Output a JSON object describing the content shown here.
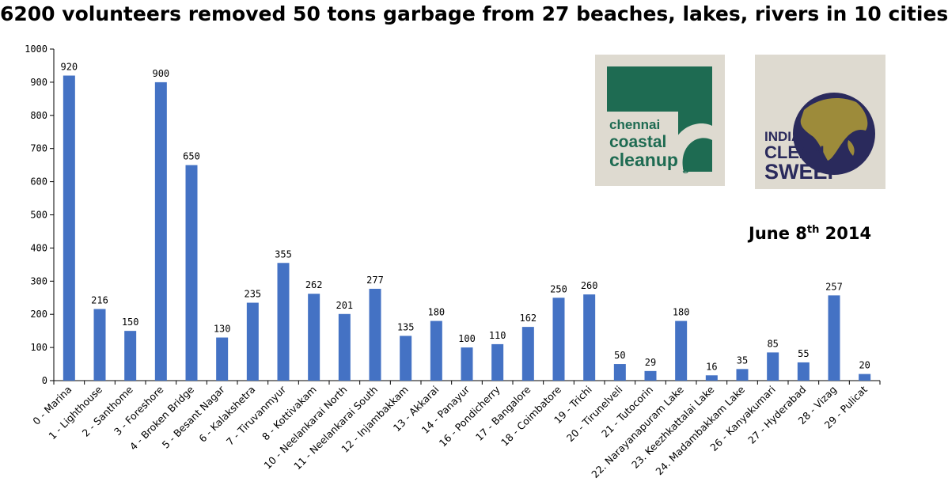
{
  "chart_data": {
    "type": "bar",
    "title": "6200 volunteers removed 50 tons garbage from 27 beaches, lakes, rivers in 10 cities",
    "xlabel": "",
    "ylabel": "",
    "ylim": [
      0,
      1000
    ],
    "yticks": [
      0,
      100,
      200,
      300,
      400,
      500,
      600,
      700,
      800,
      900,
      1000
    ],
    "grid": false,
    "legend": "none",
    "bar_color": "#4472c4",
    "categories": [
      "0 - Marina",
      "1 - Lighthouse",
      "2 - Santhome",
      "3 - Foreshore",
      "4 - Broken Bridge",
      "5 - Besant Nagar",
      "6 - Kalakshetra",
      "7 - Tiruvanmyur",
      "8 - Kottivakam",
      "10 - Neelankarai North",
      "11 - Neelankarai South",
      "12 - Injambakkam",
      "13 - Akkarai",
      "14 - Panayur",
      "16 - Pondicherry",
      "17 - Bangalore",
      "18 - Coimbatore",
      "19 - Trichi",
      "20 - Tirunelveli",
      "21 - Tutocorin",
      "22. Narayanapuram Lake",
      "23. Keezhkattalai Lake",
      "24. Madambakkam Lake",
      "26 - Kanyakumari",
      "27 - Hyderabad",
      "28 - Vizag",
      "29 - Pulicat"
    ],
    "values": [
      920,
      216,
      150,
      900,
      650,
      130,
      235,
      355,
      262,
      201,
      277,
      135,
      180,
      100,
      110,
      162,
      250,
      260,
      50,
      29,
      180,
      16,
      35,
      85,
      55,
      257,
      20
    ]
  },
  "logos": {
    "chennai": {
      "line1": "chennai",
      "line2": "coastal",
      "line3": "cleanup",
      "sub": "5",
      "color": "#1e6b52"
    },
    "india": {
      "line1": "INDIA",
      "line2": "CLEAN",
      "line3": "SWEEP",
      "color": "#2a2a5c",
      "globe_land": "#9d8b3a"
    }
  },
  "date": {
    "prefix": "June 8",
    "sup": "th",
    "suffix": " 2014"
  }
}
